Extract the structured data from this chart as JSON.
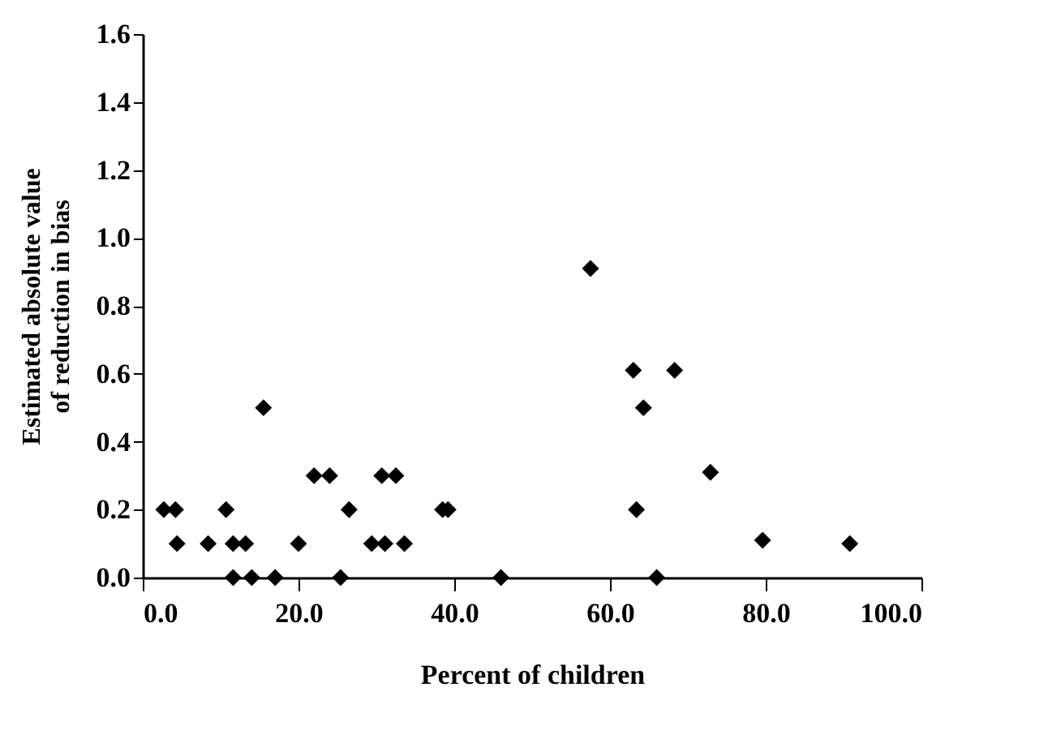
{
  "chart_data": {
    "type": "scatter",
    "xlabel": "Percent of children",
    "ylabel": "Estimated absolute value of reduction in bias",
    "marker": "diamond",
    "grid": false,
    "legend": false,
    "xlim": [
      0,
      100
    ],
    "ylim": [
      0,
      1.6
    ],
    "xticks": [
      {
        "value": 0,
        "label": "0.0"
      },
      {
        "value": 20,
        "label": "20.0"
      },
      {
        "value": 40,
        "label": "40.0"
      },
      {
        "value": 60,
        "label": "60.0"
      },
      {
        "value": 80,
        "label": "80.0"
      },
      {
        "value": 100,
        "label": "100.0"
      }
    ],
    "yticks": [
      {
        "value": 0,
        "label": "0.0"
      },
      {
        "value": 0.2,
        "label": "0.2"
      },
      {
        "value": 0.4,
        "label": "0.4"
      },
      {
        "value": 0.6,
        "label": "0.6"
      },
      {
        "value": 0.8,
        "label": "0.8"
      },
      {
        "value": 1,
        "label": "1.0"
      },
      {
        "value": 1.2,
        "label": "1.2"
      },
      {
        "value": 1.4,
        "label": "1.4"
      },
      {
        "value": 1.6,
        "label": "1.6"
      }
    ],
    "series": [
      {
        "color": "#000000",
        "x": [
          2.7,
          4.2,
          4.4,
          8.4,
          11.6,
          13.2,
          20,
          29.4,
          31.1,
          33.6,
          10.7,
          26.5,
          38.5,
          39.2,
          22,
          24,
          30.7,
          32.5,
          11.6,
          14,
          17,
          25.4,
          46,
          15.5,
          57.5,
          63,
          68.3,
          64.3,
          72.9,
          63.4,
          79.6,
          90.8,
          66
        ],
        "values": [
          0.2,
          0.2,
          0.1,
          0.1,
          0.1,
          0.1,
          0.1,
          0.1,
          0.1,
          0.1,
          0.2,
          0.2,
          0.2,
          0.2,
          0.3,
          0.3,
          0.3,
          0.3,
          0,
          0,
          0,
          0,
          0,
          0.5,
          0.91,
          0.61,
          0.61,
          0.5,
          0.31,
          0.2,
          0.11,
          0.1,
          0
        ]
      }
    ]
  }
}
